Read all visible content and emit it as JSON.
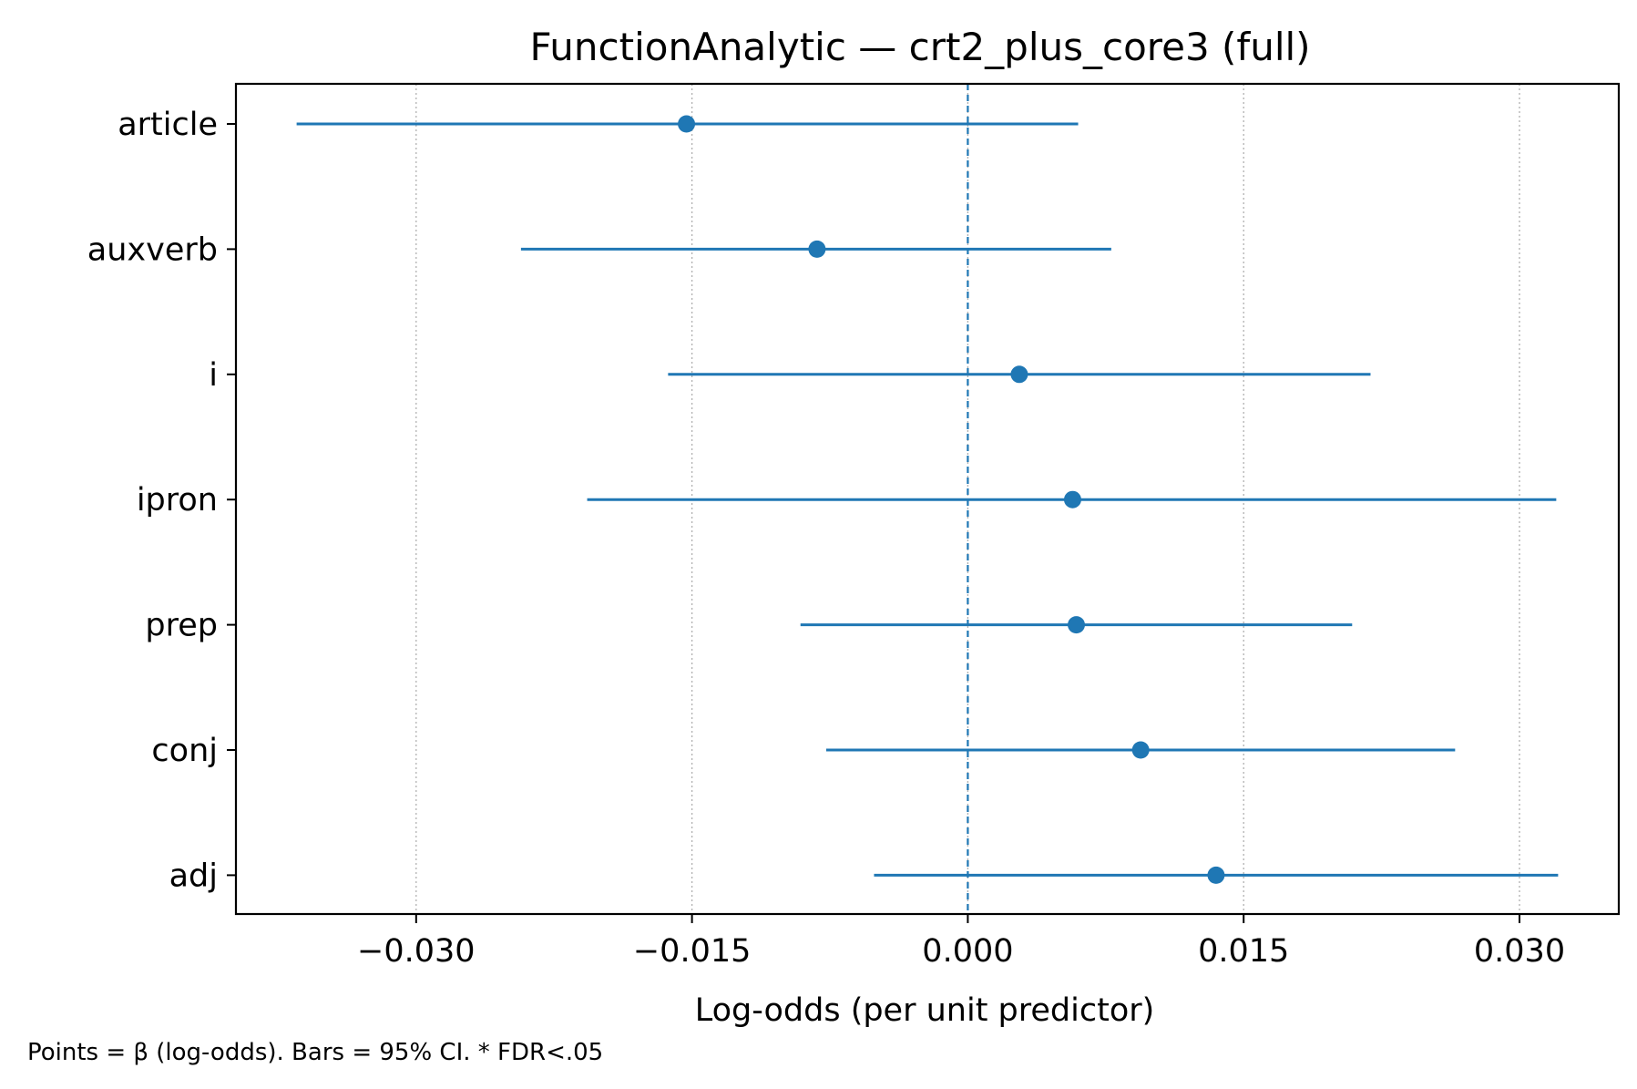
{
  "chart_data": {
    "type": "forest",
    "title": "FunctionAnalytic — crt2_plus_core3 (full)",
    "xlabel": "Log-odds (per unit predictor)",
    "ylabel": "",
    "footnote": "Points = β (log-odds). Bars = 95% CI. * FDR<.05",
    "xlim": [
      -0.0398,
      0.0354
    ],
    "xticks": [
      -0.03,
      -0.015,
      0.0,
      0.015,
      0.03
    ],
    "xtick_labels": [
      "−0.030",
      "−0.015",
      "0.000",
      "0.015",
      "0.030"
    ],
    "reference_line": 0.0,
    "grid": "x-dotted",
    "color": "#1f77b4",
    "rows": [
      {
        "label": "article",
        "estimate": -0.0153,
        "ci_low": -0.0365,
        "ci_high": 0.006
      },
      {
        "label": "auxverb",
        "estimate": -0.0082,
        "ci_low": -0.0243,
        "ci_high": 0.0078
      },
      {
        "label": "i",
        "estimate": 0.0028,
        "ci_low": -0.0163,
        "ci_high": 0.0219
      },
      {
        "label": "ipron",
        "estimate": 0.0057,
        "ci_low": -0.0207,
        "ci_high": 0.032
      },
      {
        "label": "prep",
        "estimate": 0.0059,
        "ci_low": -0.0091,
        "ci_high": 0.0209
      },
      {
        "label": "conj",
        "estimate": 0.0094,
        "ci_low": -0.0077,
        "ci_high": 0.0265
      },
      {
        "label": "adj",
        "estimate": 0.0135,
        "ci_low": -0.0051,
        "ci_high": 0.0321
      }
    ]
  }
}
